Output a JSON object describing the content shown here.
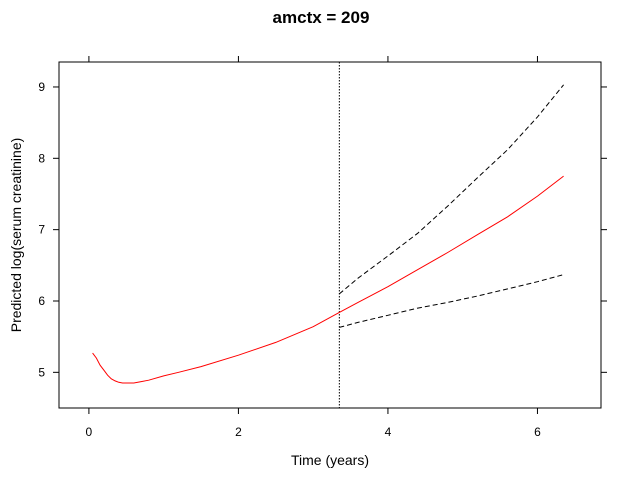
{
  "chart_data": {
    "type": "line",
    "title": "amctx = 209",
    "xlabel": "Time (years)",
    "ylabel": "Predicted log(serum creatinine)",
    "xlim": [
      -0.4,
      6.85
    ],
    "ylim": [
      4.5,
      9.35
    ],
    "xticks": [
      0,
      2,
      4,
      6
    ],
    "yticks": [
      5,
      6,
      7,
      8,
      9
    ],
    "grid": false,
    "vline": {
      "x": 3.35,
      "style": "dotted",
      "color": "#000000"
    },
    "series": [
      {
        "style": "solid",
        "color": "#ff0000",
        "x": [
          0.05,
          0.1,
          0.15,
          0.2,
          0.25,
          0.3,
          0.35,
          0.4,
          0.45,
          0.5,
          0.6,
          0.7,
          0.8,
          1.0,
          1.2,
          1.5,
          2.0,
          2.5,
          3.0,
          3.35,
          3.6,
          4.0,
          4.4,
          4.8,
          5.2,
          5.6,
          6.0,
          6.35
        ],
        "y": [
          5.27,
          5.2,
          5.1,
          5.03,
          4.96,
          4.91,
          4.88,
          4.86,
          4.85,
          4.85,
          4.85,
          4.87,
          4.89,
          4.95,
          5.0,
          5.08,
          5.24,
          5.42,
          5.64,
          5.84,
          5.98,
          6.2,
          6.44,
          6.68,
          6.93,
          7.18,
          7.47,
          7.75
        ]
      },
      {
        "style": "dashed",
        "color": "#000000",
        "x": [
          3.35,
          3.6,
          4.0,
          4.4,
          4.8,
          5.2,
          5.6,
          6.0,
          6.35
        ],
        "y": [
          6.1,
          6.32,
          6.63,
          6.95,
          7.33,
          7.73,
          8.12,
          8.58,
          9.03
        ]
      },
      {
        "style": "dashed",
        "color": "#000000",
        "x": [
          3.35,
          3.6,
          4.0,
          4.4,
          4.8,
          5.2,
          5.6,
          6.0,
          6.35
        ],
        "y": [
          5.63,
          5.7,
          5.8,
          5.9,
          5.98,
          6.07,
          6.17,
          6.27,
          6.37
        ]
      }
    ]
  }
}
